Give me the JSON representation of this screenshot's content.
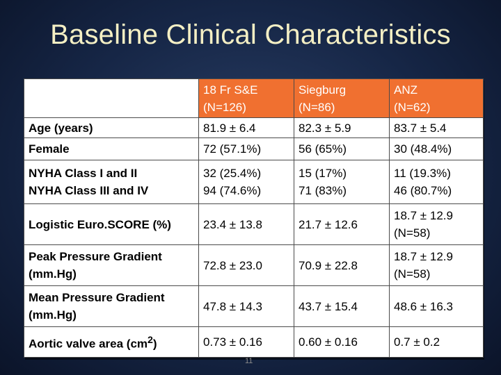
{
  "title": "Baseline Clinical Characteristics",
  "columns": [
    {
      "name": "18 Fr S&E",
      "n": "(N=126)"
    },
    {
      "name": "Siegburg",
      "n": "(N=86)"
    },
    {
      "name": "ANZ",
      "n": "(N=62)"
    }
  ],
  "rows": {
    "age": {
      "label": "Age (years)",
      "values": [
        "81.9 ± 6.4",
        "82.3 ± 5.9",
        "83.7 ± 5.4"
      ]
    },
    "female": {
      "label": "Female",
      "values": [
        "72 (57.1%)",
        "56 (65%)",
        "30 (48.4%)"
      ]
    },
    "nyha": {
      "labels": [
        "NYHA Class I and II",
        "NYHA Class III and IV"
      ],
      "values": [
        [
          "32 (25.4%)",
          "94 (74.6%)"
        ],
        [
          "15 (17%)",
          "71 (83%)"
        ],
        [
          "11 (19.3%)",
          "46 (80.7%)"
        ]
      ]
    },
    "euroscore": {
      "label": "Logistic Euro.SCORE (%)",
      "values": [
        "23.4 ± 13.8",
        "21.7 ± 12.6"
      ],
      "anz_lines": [
        "18.7 ± 12.9",
        "(N=58)"
      ]
    },
    "peak": {
      "label_lines": [
        "Peak Pressure Gradient",
        "(mm.Hg)"
      ],
      "values": [
        "72.8 ± 23.0",
        "70.9 ± 22.8"
      ],
      "anz_lines": [
        "18.7 ± 12.9",
        "(N=58)"
      ]
    },
    "mean": {
      "label_lines": [
        "Mean Pressure Gradient",
        "(mm.Hg)"
      ],
      "values": [
        "47.8 ± 14.3",
        "43.7 ± 15.4",
        "48.6 ± 16.3"
      ]
    },
    "ava": {
      "label": "Aortic valve area (cm",
      "label_sup": "2",
      "label_end": ")",
      "values": [
        "0.73 ± 0.16",
        "0.60 ± 0.16",
        "0.7 ± 0.2"
      ]
    }
  },
  "page_number": "11"
}
